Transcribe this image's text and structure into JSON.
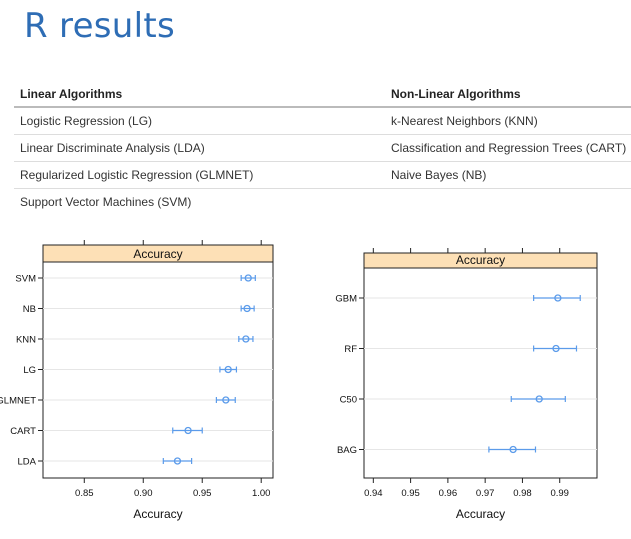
{
  "title": "R results",
  "table": {
    "headers": [
      "Linear Algorithms",
      "Non-Linear Algorithms"
    ],
    "rows": [
      [
        "Logistic Regression (LG)",
        "k-Nearest Neighbors (KNN)"
      ],
      [
        "Linear Discriminate Analysis (LDA)",
        "Classification and Regression Trees (CART)"
      ],
      [
        "Regularized Logistic Regression (GLMNET)",
        "Naive Bayes (NB)"
      ],
      [
        "Support Vector Machines (SVM)",
        ""
      ]
    ]
  },
  "chart_data": [
    {
      "type": "scatter",
      "strip": "Accuracy",
      "xlabel": "Accuracy",
      "xlim": [
        0.815,
        1.01
      ],
      "xticks": [
        0.85,
        0.9,
        0.95,
        1.0
      ],
      "xtick_labels": [
        "0.85",
        "0.90",
        "0.95",
        "1.00"
      ],
      "categories": [
        "SVM",
        "NB",
        "KNN",
        "LG",
        "GLMNET",
        "CART",
        "LDA"
      ],
      "values": [
        0.989,
        0.988,
        0.987,
        0.972,
        0.97,
        0.938,
        0.929
      ],
      "lower": [
        0.983,
        0.983,
        0.981,
        0.965,
        0.962,
        0.925,
        0.917
      ],
      "upper": [
        0.995,
        0.994,
        0.993,
        0.979,
        0.978,
        0.95,
        0.941
      ],
      "color": "#5b9bea",
      "strip_color": "#fde0b6"
    },
    {
      "type": "scatter",
      "strip": "Accuracy",
      "xlabel": "Accuracy",
      "xlim": [
        0.9375,
        1.0
      ],
      "xticks": [
        0.94,
        0.95,
        0.96,
        0.97,
        0.98,
        0.99
      ],
      "xtick_labels": [
        "0.94",
        "0.95",
        "0.96",
        "0.97",
        "0.98",
        "0.99"
      ],
      "categories": [
        "GBM",
        "RF",
        "C50",
        "BAG"
      ],
      "values": [
        0.9895,
        0.989,
        0.9845,
        0.9775
      ],
      "lower": [
        0.983,
        0.983,
        0.977,
        0.971
      ],
      "upper": [
        0.9955,
        0.9945,
        0.9915,
        0.9835
      ],
      "color": "#5b9bea",
      "strip_color": "#fde0b6"
    }
  ]
}
